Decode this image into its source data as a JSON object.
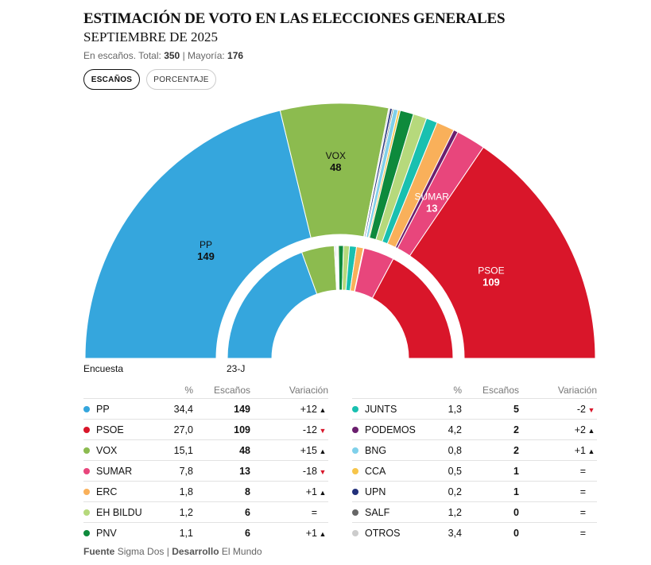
{
  "header": {
    "title": "ESTIMACIÓN DE VOTO EN LAS ELECCIONES GENERALES",
    "subtitle": "SEPTIEMBRE DE 2025",
    "meta_prefix": "En escaños. Total:",
    "total": "350",
    "meta_mid": "| Mayoría:",
    "majority": "176"
  },
  "tabs": {
    "seats": "ESCAÑOS",
    "percent": "PORCENTAJE"
  },
  "captions": {
    "outer": "Encuesta",
    "inner": "23-J"
  },
  "table": {
    "col_pct": "%",
    "col_seats": "Escaños",
    "col_var": "Variación"
  },
  "footer": {
    "source_label": "Fuente",
    "source": "Sigma Dos",
    "sep": "|",
    "dev_label": "Desarrollo",
    "dev": "El Mundo"
  },
  "chart_data": {
    "type": "parliament",
    "total_seats": 350,
    "majority": 176,
    "series": [
      {
        "name": "PP",
        "color": "#35a6dd",
        "pct": "34,4",
        "seats": 149,
        "prev_seats": 137,
        "variation": "+12",
        "dir": "up"
      },
      {
        "name": "VOX",
        "color": "#8cbb4f",
        "pct": "15,1",
        "seats": 48,
        "prev_seats": 33,
        "variation": "+15",
        "dir": "up"
      },
      {
        "name": "OTROS",
        "color": "#cccccc",
        "pct": "3,4",
        "seats": 0,
        "prev_seats": 0,
        "variation": "=",
        "dir": "eq"
      },
      {
        "name": "UPN",
        "color": "#22307a",
        "pct": "0,2",
        "seats": 1,
        "prev_seats": 1,
        "variation": "=",
        "dir": "eq"
      },
      {
        "name": "SALF",
        "color": "#666666",
        "pct": "1,2",
        "seats": 0,
        "prev_seats": 0,
        "variation": "=",
        "dir": "eq"
      },
      {
        "name": "BNG",
        "color": "#7fd0ea",
        "pct": "0,8",
        "seats": 2,
        "prev_seats": 1,
        "variation": "+1",
        "dir": "up"
      },
      {
        "name": "CCA",
        "color": "#f7c54a",
        "pct": "0,5",
        "seats": 1,
        "prev_seats": 1,
        "variation": "=",
        "dir": "eq"
      },
      {
        "name": "PNV",
        "color": "#0e8a3c",
        "pct": "1,1",
        "seats": 6,
        "prev_seats": 5,
        "variation": "+1",
        "dir": "up"
      },
      {
        "name": "EH BILDU",
        "color": "#b6d97c",
        "pct": "1,2",
        "seats": 6,
        "prev_seats": 6,
        "variation": "=",
        "dir": "eq"
      },
      {
        "name": "JUNTS",
        "color": "#19c0b0",
        "pct": "1,3",
        "seats": 5,
        "prev_seats": 7,
        "variation": "-2",
        "dir": "down"
      },
      {
        "name": "ERC",
        "color": "#f9b05a",
        "pct": "1,8",
        "seats": 8,
        "prev_seats": 7,
        "variation": "+1",
        "dir": "up"
      },
      {
        "name": "PODEMOS",
        "color": "#6b1f6e",
        "pct": "4,2",
        "seats": 2,
        "prev_seats": 0,
        "variation": "+2",
        "dir": "up"
      },
      {
        "name": "SUMAR",
        "color": "#e8467c",
        "pct": "7,8",
        "seats": 13,
        "prev_seats": 31,
        "variation": "-18",
        "dir": "down"
      },
      {
        "name": "PSOE",
        "color": "#d9162a",
        "pct": "27,0",
        "seats": 109,
        "prev_seats": 121,
        "variation": "-12",
        "dir": "down"
      }
    ],
    "arc_labels": [
      "PP",
      "VOX",
      "SUMAR",
      "PSOE"
    ],
    "left_table": [
      "PP",
      "PSOE",
      "VOX",
      "SUMAR",
      "ERC",
      "EH BILDU",
      "PNV"
    ],
    "right_table": [
      "JUNTS",
      "PODEMOS",
      "BNG",
      "CCA",
      "UPN",
      "SALF",
      "OTROS"
    ]
  }
}
